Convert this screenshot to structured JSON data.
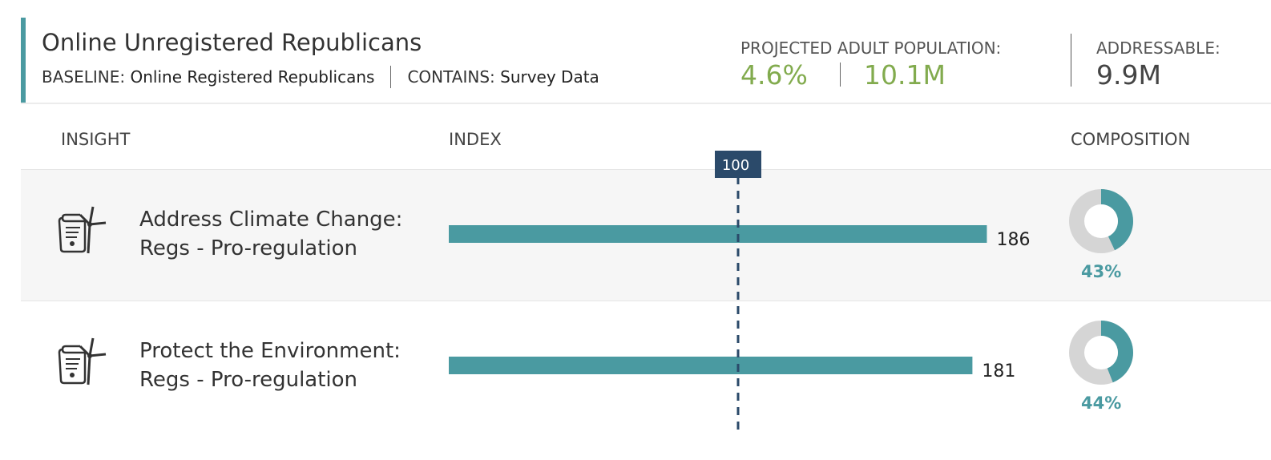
{
  "header": {
    "title": "Online Unregistered Republicans",
    "baseline_label": "BASELINE:",
    "baseline_value": "Online Registered Republicans",
    "contains_label": "CONTAINS:",
    "contains_value": "Survey Data",
    "projected_label": "PROJECTED ADULT POPULATION:",
    "projected_pct": "4.6%",
    "projected_count": "10.1M",
    "addressable_label": "ADDRESSABLE:",
    "addressable_count": "9.9M"
  },
  "columns": {
    "insight": "INSIGHT",
    "index": "INDEX",
    "composition": "COMPOSITION"
  },
  "colors": {
    "accent": "#4a9aa1",
    "green": "#82ab4e",
    "reference_line": "#2b4a6a",
    "donut_track": "#d5d5d5"
  },
  "rows": [
    {
      "label_line1": "Address Climate Change:",
      "label_line2": "Regs - Pro-regulation",
      "icon": "wind-turbine-document-icon",
      "composition_label": "43%"
    },
    {
      "label_line1": "Protect the Environment:",
      "label_line2": "Regs - Pro-regulation",
      "icon": "wind-turbine-document-icon",
      "composition_label": "44%"
    }
  ],
  "chart_data": {
    "type": "bar",
    "orientation": "horizontal",
    "categories": [
      "Address Climate Change: Regs - Pro-regulation",
      "Protect the Environment: Regs - Pro-regulation"
    ],
    "values": [
      186,
      181
    ],
    "value_labels": [
      "186",
      "181"
    ],
    "reference_value": 100,
    "reference_label": "100",
    "composition": [
      43,
      44
    ]
  }
}
